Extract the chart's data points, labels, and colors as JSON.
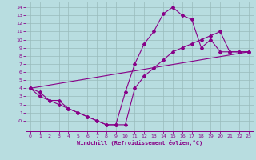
{
  "xlabel": "Windchill (Refroidissement éolien,°C)",
  "bg_color": "#b8dde0",
  "line_color": "#880088",
  "grid_color": "#99bbbb",
  "xlim": [
    -0.5,
    23.5
  ],
  "ylim": [
    -1.3,
    14.7
  ],
  "xticks": [
    0,
    1,
    2,
    3,
    4,
    5,
    6,
    7,
    8,
    9,
    10,
    11,
    12,
    13,
    14,
    15,
    16,
    17,
    18,
    19,
    20,
    21,
    22,
    23
  ],
  "yticks": [
    0,
    1,
    2,
    3,
    4,
    5,
    6,
    7,
    8,
    9,
    10,
    11,
    12,
    13,
    14
  ],
  "ytick_labels": [
    "-0",
    "1",
    "2",
    "3",
    "4",
    "5",
    "6",
    "7",
    "8",
    "9",
    "10",
    "11",
    "12",
    "13",
    "14"
  ],
  "curve1_x": [
    0,
    1,
    2,
    3,
    4,
    5,
    6,
    7,
    8,
    9,
    10,
    11,
    12,
    13,
    14,
    15,
    16,
    17,
    18,
    19,
    20,
    21,
    22,
    23
  ],
  "curve1_y": [
    4,
    3,
    2.5,
    2.5,
    1.5,
    1,
    0.5,
    0,
    -0.5,
    -0.5,
    3.5,
    7,
    9.5,
    11,
    13.2,
    14,
    13,
    12.5,
    9,
    10,
    8.5,
    8.5,
    8.5,
    8.5
  ],
  "curve2_x": [
    0,
    1,
    2,
    3,
    4,
    5,
    6,
    7,
    8,
    9,
    10,
    11,
    12,
    13,
    14,
    15,
    16,
    17,
    18,
    19,
    20,
    21,
    22,
    23
  ],
  "curve2_y": [
    4,
    3.5,
    2.5,
    2,
    1.5,
    1,
    0.5,
    0,
    -0.5,
    -0.5,
    -0.5,
    4,
    5.5,
    6.5,
    7.5,
    8.5,
    9,
    9.5,
    10,
    10.5,
    11,
    8.5,
    8.5,
    8.5
  ],
  "curve3_x": [
    0,
    23
  ],
  "curve3_y": [
    4,
    8.5
  ],
  "figsize": [
    3.2,
    2.0
  ],
  "dpi": 100
}
